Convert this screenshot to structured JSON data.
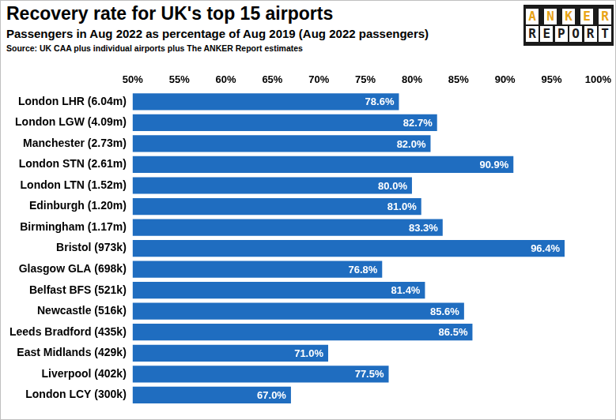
{
  "chart_data": {
    "type": "bar",
    "title": "Recovery rate for UK's top 15 airports",
    "subtitle": "Passengers in Aug 2022 as percentage of Aug 2019 (Aug 2022 passengers)",
    "source": "Source: UK CAA plus individual airports plus The ANKER Report estimates",
    "logo": [
      "ANKER",
      "REPORT"
    ],
    "orientation": "horizontal",
    "categories": [
      "London LHR (6.04m)",
      "London LGW (4.09m)",
      "Manchester (2.73m)",
      "London STN (2.61m)",
      "London LTN (1.52m)",
      "Edinburgh (1.20m)",
      "Birmingham (1.17m)",
      "Bristol (973k)",
      "Glasgow GLA (698k)",
      "Belfast BFS (521k)",
      "Newcastle (516k)",
      "Leeds Bradford (435k)",
      "East Midlands (429k)",
      "Liverpool (402k)",
      "London LCY (300k)"
    ],
    "values": [
      78.6,
      82.7,
      82.0,
      90.9,
      80.0,
      81.0,
      83.3,
      96.4,
      76.8,
      81.4,
      85.6,
      86.5,
      71.0,
      77.5,
      67.0
    ],
    "value_labels": [
      "78.6%",
      "82.7%",
      "82.0%",
      "90.9%",
      "80.0%",
      "81.0%",
      "83.3%",
      "96.4%",
      "76.8%",
      "81.4%",
      "85.6%",
      "86.5%",
      "71.0%",
      "77.5%",
      "67.0%"
    ],
    "color": "#1f6dc0",
    "data_labels": true,
    "grid": false,
    "xlim": [
      50,
      100
    ],
    "xticks": [
      {
        "value": 50,
        "label": "50%"
      },
      {
        "value": 55,
        "label": "55%"
      },
      {
        "value": 60,
        "label": "60%"
      },
      {
        "value": 65,
        "label": "65%"
      },
      {
        "value": 70,
        "label": "70%"
      },
      {
        "value": 75,
        "label": "75%"
      },
      {
        "value": 80,
        "label": "80%"
      },
      {
        "value": 85,
        "label": "85%"
      },
      {
        "value": 90,
        "label": "90%"
      },
      {
        "value": 95,
        "label": "95%"
      },
      {
        "value": 100,
        "label": "100%"
      }
    ]
  }
}
